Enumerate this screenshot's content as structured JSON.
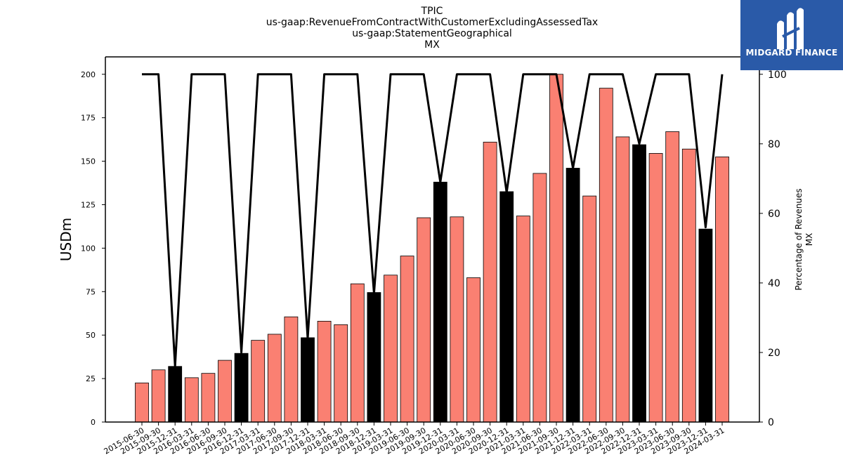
{
  "chart_data": {
    "type": "bar",
    "title": [
      "TPIC",
      "us-gaap:RevenueFromContractWithCustomerExcludingAssessedTax",
      "us-gaap:StatementGeographical",
      "MX"
    ],
    "ylabel": "USDm",
    "y2label": [
      "Percentage of Revenues",
      "MX"
    ],
    "ylim": [
      0,
      210
    ],
    "y2lim": [
      0,
      105
    ],
    "yticks": [
      0,
      25,
      50,
      75,
      100,
      125,
      150,
      175,
      200
    ],
    "y2ticks": [
      0,
      20,
      40,
      60,
      80,
      100
    ],
    "categories": [
      "2015-06-30",
      "2015-09-30",
      "2015-12-31",
      "2016-03-31",
      "2016-06-30",
      "2016-09-30",
      "2016-12-31",
      "2017-03-31",
      "2017-06-30",
      "2017-09-30",
      "2017-12-31",
      "2018-03-31",
      "2018-06-30",
      "2018-09-30",
      "2018-12-31",
      "2019-03-31",
      "2019-06-30",
      "2019-09-30",
      "2019-12-31",
      "2020-03-31",
      "2020-06-30",
      "2020-09-30",
      "2020-12-31",
      "2021-03-31",
      "2021-06-30",
      "2021-09-30",
      "2021-12-31",
      "2022-03-31",
      "2022-06-30",
      "2022-09-30",
      "2022-12-31",
      "2023-03-31",
      "2023-06-30",
      "2023-09-30",
      "2023-12-31",
      "2024-03-31"
    ],
    "series": [
      {
        "kind": "bar",
        "values": [
          22.5,
          30,
          32,
          25.5,
          28,
          35.5,
          39.5,
          47,
          50.5,
          60.5,
          48.5,
          58,
          56,
          79.5,
          74.5,
          84.5,
          95.5,
          117.5,
          138,
          118,
          83,
          161,
          132.5,
          118.5,
          143,
          200,
          146,
          130,
          192,
          164,
          159.5,
          154.5,
          167,
          157,
          111,
          152.5
        ],
        "colors": [
          "#fa8072",
          "#fa8072",
          "#000000",
          "#fa8072",
          "#fa8072",
          "#fa8072",
          "#000000",
          "#fa8072",
          "#fa8072",
          "#fa8072",
          "#000000",
          "#fa8072",
          "#fa8072",
          "#fa8072",
          "#000000",
          "#fa8072",
          "#fa8072",
          "#fa8072",
          "#000000",
          "#fa8072",
          "#fa8072",
          "#fa8072",
          "#000000",
          "#fa8072",
          "#fa8072",
          "#fa8072",
          "#000000",
          "#fa8072",
          "#fa8072",
          "#fa8072",
          "#000000",
          "#fa8072",
          "#fa8072",
          "#fa8072",
          "#000000",
          "#fa8072"
        ]
      },
      {
        "kind": "line",
        "axis": "right",
        "color": "#000000",
        "values": [
          100,
          100,
          16,
          100,
          100,
          100,
          20,
          100,
          100,
          100,
          24,
          100,
          100,
          100,
          37,
          100,
          100,
          100,
          69,
          100,
          100,
          100,
          66,
          100,
          100,
          100,
          73,
          100,
          100,
          100,
          80,
          100,
          100,
          100,
          56,
          100
        ]
      }
    ],
    "grid": false,
    "legend": "none"
  },
  "logo": {
    "text": "MIDGARD FINANCE",
    "color": "#2a5aa8"
  }
}
